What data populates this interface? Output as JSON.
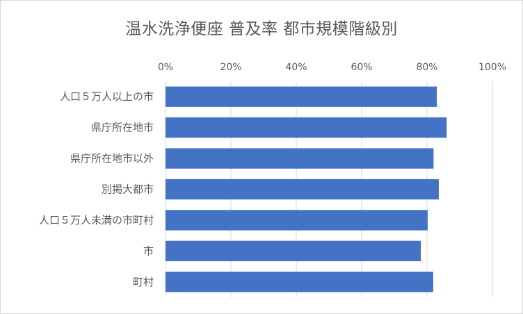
{
  "chart_data": {
    "type": "bar",
    "orientation": "horizontal",
    "title": "温水洗浄便座 普及率 都市規模階級別",
    "categories": [
      "人口５万人以上の市",
      "県庁所在地市",
      "県庁所在地市以外",
      "別掲大都市",
      "人口５万人未満の市町村",
      "市",
      "町村"
    ],
    "values": [
      83,
      86,
      82,
      83.6,
      80.2,
      78.1,
      81.9
    ],
    "xlim": [
      0,
      100
    ],
    "x_ticks": [
      "0%",
      "20%",
      "40%",
      "60%",
      "80%",
      "100%"
    ],
    "x_axis_position": "top",
    "grid": true,
    "legend": "none",
    "bar_color": "#4472c4",
    "grid_color": "#d9d9d9",
    "text_color": "#595959"
  }
}
